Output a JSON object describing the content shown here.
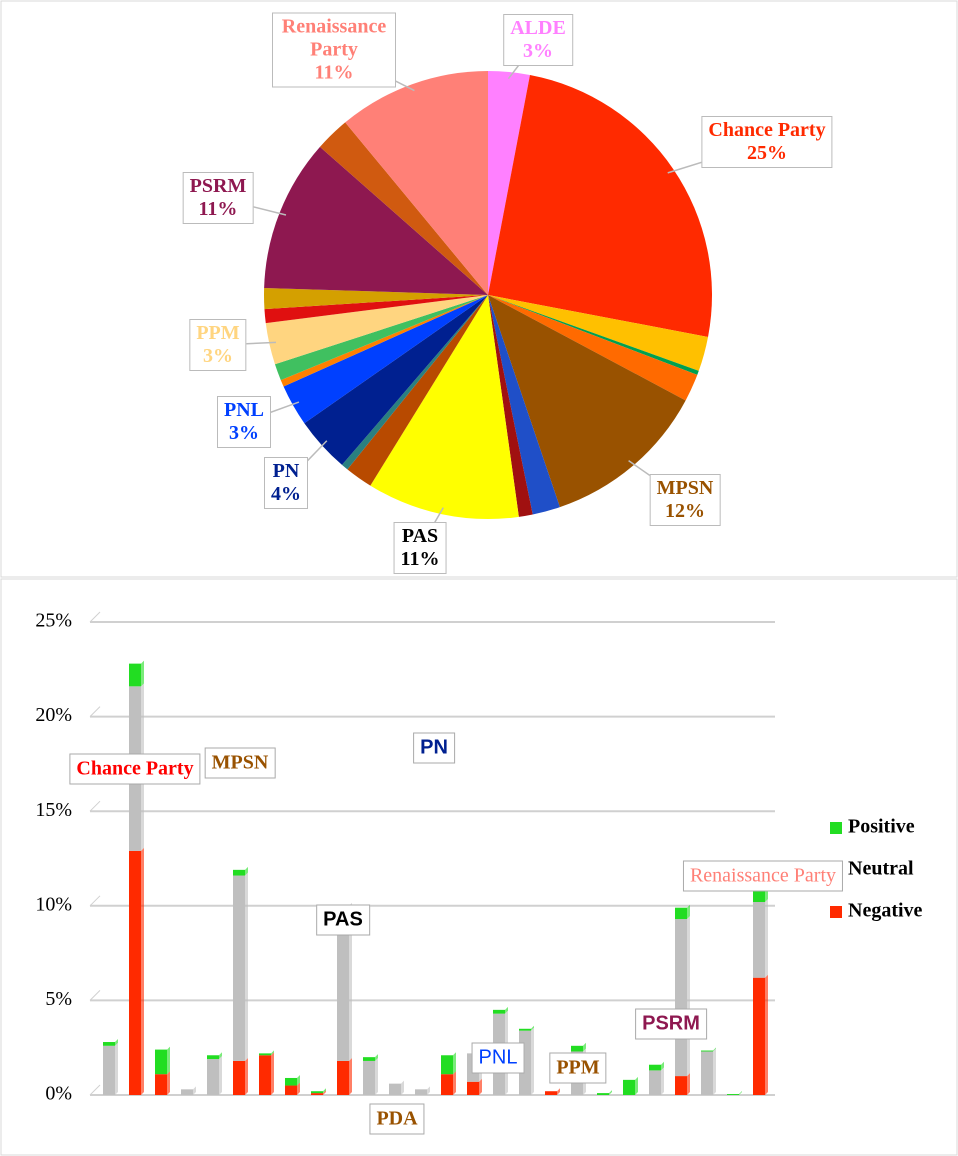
{
  "chart_data": [
    {
      "type": "pie",
      "categories": [
        "ALDE",
        "Chance Party",
        null,
        null,
        null,
        "MPSN",
        null,
        null,
        "PAS",
        null,
        null,
        "PN",
        "PNL",
        null,
        null,
        "PPM",
        null,
        null,
        "PSRM",
        null,
        "Renaissance Party"
      ],
      "values": [
        3,
        25,
        2.5,
        0.3,
        2,
        12,
        2,
        1,
        11,
        2,
        0.5,
        4,
        3,
        0.5,
        1.2,
        3,
        1,
        1.5,
        11,
        2.5,
        11
      ],
      "value_labels": [
        "3%",
        "25%",
        null,
        null,
        null,
        "12%",
        null,
        null,
        "11%",
        null,
        null,
        "4%",
        "3%",
        null,
        null,
        "3%",
        null,
        null,
        "11%",
        null,
        "11%"
      ],
      "colors": [
        "#ff80ff",
        "#ff2a00",
        "#ffc000",
        "#00a050",
        "#ff6a00",
        "#995200",
        "#1f4fc8",
        "#a01010",
        "#ffff00",
        "#b84a00",
        "#2a8080",
        "#002090",
        "#0040ff",
        "#ff8000",
        "#40c060",
        "#ffd580",
        "#e01010",
        "#d4a000",
        "#8e1850",
        "#d05a10",
        "#ff8077"
      ],
      "label_colors": [
        "#ff80ff",
        "#ff2a00",
        null,
        null,
        null,
        "#995200",
        null,
        null,
        "#000000",
        null,
        null,
        "#002090",
        "#0040ff",
        null,
        null,
        "#ffd580",
        null,
        null,
        "#8e1850",
        null,
        "#ff8077"
      ]
    },
    {
      "type": "bar",
      "stacked": true,
      "categories": [
        null,
        null,
        null,
        null,
        null,
        null,
        null,
        null,
        null,
        null,
        null,
        null,
        null,
        null,
        null,
        null,
        null,
        null,
        null,
        null,
        null,
        null,
        null,
        null,
        null,
        null
      ],
      "series": [
        {
          "name": "Negative",
          "color": "#ff2a00",
          "values": [
            0,
            12.9,
            1.1,
            0,
            0,
            1.8,
            2.1,
            0.5,
            0.1,
            1.8,
            0,
            0,
            0,
            1.1,
            0.7,
            0,
            0,
            0.2,
            0,
            0,
            0,
            0,
            1.0,
            0,
            0,
            6.2
          ]
        },
        {
          "name": "Neutral",
          "color": "#bfbfbf",
          "values": [
            2.6,
            8.7,
            0,
            0.3,
            1.9,
            9.8,
            0,
            0,
            0,
            8.2,
            1.8,
            0.6,
            0.3,
            0,
            1.5,
            4.3,
            3.4,
            0,
            2.3,
            0,
            0,
            1.3,
            8.3,
            2.3,
            0,
            4.0
          ]
        },
        {
          "name": "Positive",
          "color": "#22dd22",
          "values": [
            0.2,
            1.2,
            1.3,
            0,
            0.2,
            0.3,
            0.1,
            0.4,
            0.1,
            0,
            0.2,
            0,
            0,
            1.0,
            0,
            0.2,
            0.1,
            0,
            0.3,
            0.1,
            0.8,
            0.3,
            0.6,
            0.05,
            0.05,
            1.1
          ]
        }
      ],
      "ylim": [
        0,
        25
      ],
      "yticks": [
        {
          "value": 0,
          "label": "0%"
        },
        {
          "value": 5,
          "label": "5%"
        },
        {
          "value": 10,
          "label": "10%"
        },
        {
          "value": 15,
          "label": "15%"
        },
        {
          "value": 20,
          "label": "20%"
        },
        {
          "value": 25,
          "label": "25%"
        }
      ],
      "grid": true,
      "legend": "right",
      "annotations": [
        {
          "text": "Chance Party",
          "color": "#ff0000"
        },
        {
          "text": "MPSN",
          "color": "#995200"
        },
        {
          "text": "PAS",
          "color": "#000000"
        },
        {
          "text": "PDA",
          "color": "#995200"
        },
        {
          "text": "PN",
          "color": "#002090"
        },
        {
          "text": "PNL",
          "color": "#0040ff"
        },
        {
          "text": "PPM",
          "color": "#995200"
        },
        {
          "text": "PSRM",
          "color": "#8e1850"
        },
        {
          "text": "Renaissance Party",
          "color": "#ff8077"
        }
      ]
    }
  ]
}
